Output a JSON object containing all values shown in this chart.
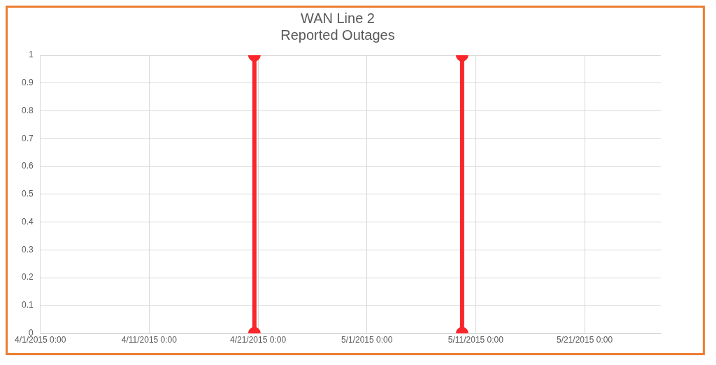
{
  "chart_data": {
    "type": "line",
    "title": "WAN Line 2\nReported Outages",
    "series": [
      {
        "color": "#f8262a",
        "x": [
          "2015-04-20T16:00",
          "2015-04-20T16:00"
        ],
        "values": [
          0,
          1
        ]
      },
      {
        "color": "#f8262a",
        "x": [
          "2015-05-09T18:00",
          "2015-05-09T18:00"
        ],
        "values": [
          1,
          0
        ]
      }
    ],
    "xlim": [
      "2015-04-01",
      "2015-05-28"
    ],
    "xticks": [
      {
        "value": "2015-04-01",
        "label": "4/1/2015 0:00"
      },
      {
        "value": "2015-04-11",
        "label": "4/11/2015 0:00"
      },
      {
        "value": "2015-04-21",
        "label": "4/21/2015 0:00"
      },
      {
        "value": "2015-05-01",
        "label": "5/1/2015 0:00"
      },
      {
        "value": "2015-05-11",
        "label": "5/11/2015 0:00"
      },
      {
        "value": "2015-05-21",
        "label": "5/21/2015 0:00"
      }
    ],
    "ylim": [
      0,
      1
    ],
    "yticks": [
      0,
      0.1,
      0.2,
      0.3,
      0.4,
      0.5,
      0.6,
      0.7,
      0.8,
      0.9,
      1
    ],
    "grid": true,
    "marker": "circle",
    "line_style": "solid",
    "legend": false
  }
}
